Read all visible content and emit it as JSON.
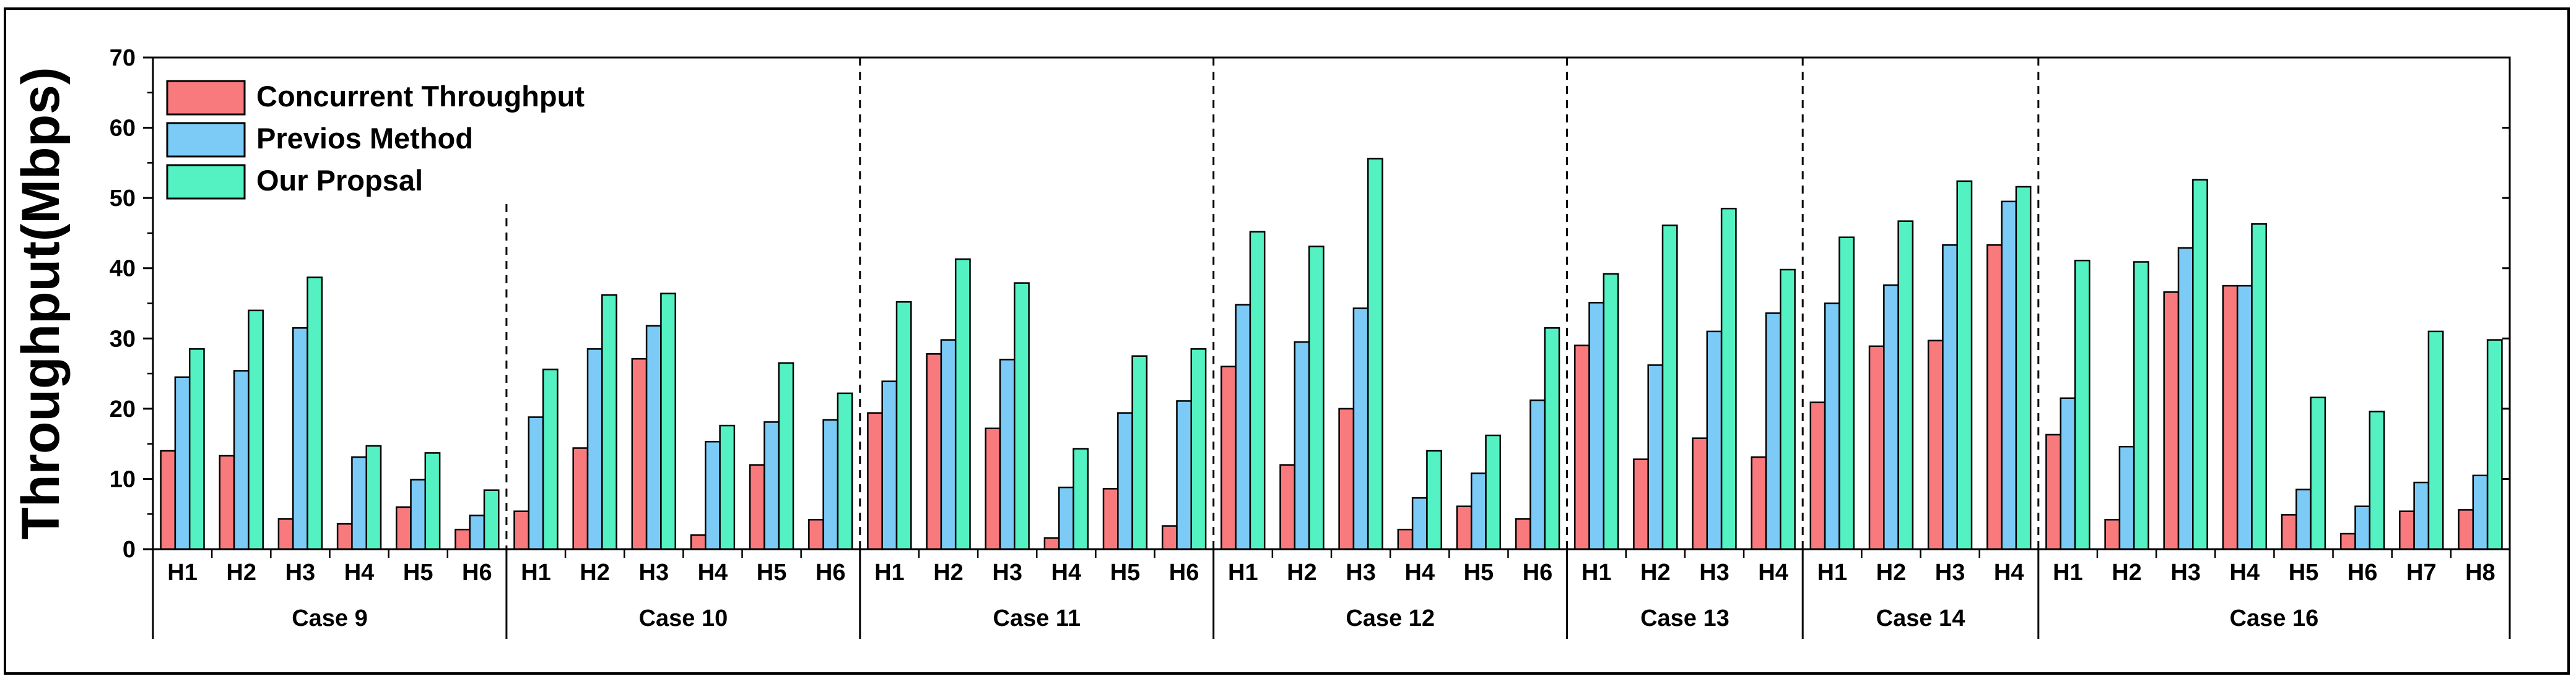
{
  "chart_data": {
    "type": "bar",
    "ylabel": "Throughput(Mbps)",
    "ylim": [
      0,
      70
    ],
    "yticks": [
      0,
      10,
      20,
      30,
      40,
      50,
      60,
      70
    ],
    "legend_position": "top-left",
    "series": [
      {
        "name": "Concurrent Throughput",
        "color": "#F87A7D"
      },
      {
        "name": "Previos Method",
        "color": "#7CCBF7"
      },
      {
        "name": "Our Propsal",
        "color": "#54F2C3"
      }
    ],
    "groups": [
      {
        "label": "Case 9",
        "hosts": [
          {
            "label": "H1",
            "values": [
              14,
              24.5,
              28.5
            ]
          },
          {
            "label": "H2",
            "values": [
              13.3,
              25.4,
              34
            ]
          },
          {
            "label": "H3",
            "values": [
              4.3,
              31.5,
              38.7
            ]
          },
          {
            "label": "H4",
            "values": [
              3.6,
              13.1,
              14.7
            ]
          },
          {
            "label": "H5",
            "values": [
              6,
              9.9,
              13.7
            ]
          },
          {
            "label": "H6",
            "values": [
              2.8,
              4.8,
              8.4
            ]
          }
        ]
      },
      {
        "label": "Case 10",
        "hosts": [
          {
            "label": "H1",
            "values": [
              5.4,
              18.8,
              25.6
            ]
          },
          {
            "label": "H2",
            "values": [
              14.4,
              28.5,
              36.2
            ]
          },
          {
            "label": "H3",
            "values": [
              27.1,
              31.8,
              36.4
            ]
          },
          {
            "label": "H4",
            "values": [
              2,
              15.3,
              17.6
            ]
          },
          {
            "label": "H5",
            "values": [
              12,
              18.1,
              26.5
            ]
          },
          {
            "label": "H6",
            "values": [
              4.2,
              18.4,
              22.2
            ]
          }
        ]
      },
      {
        "label": "Case 11",
        "hosts": [
          {
            "label": "H1",
            "values": [
              19.4,
              23.9,
              35.2
            ]
          },
          {
            "label": "H2",
            "values": [
              27.8,
              29.8,
              41.3
            ]
          },
          {
            "label": "H3",
            "values": [
              17.2,
              27,
              37.9
            ]
          },
          {
            "label": "H4",
            "values": [
              1.6,
              8.8,
              14.3
            ]
          },
          {
            "label": "H5",
            "values": [
              8.6,
              19.4,
              27.5
            ]
          },
          {
            "label": "H6",
            "values": [
              3.3,
              21.1,
              28.5
            ]
          }
        ]
      },
      {
        "label": "Case 12",
        "hosts": [
          {
            "label": "H1",
            "values": [
              26,
              34.8,
              45.2
            ]
          },
          {
            "label": "H2",
            "values": [
              12,
              29.5,
              43.1
            ]
          },
          {
            "label": "H3",
            "values": [
              20,
              34.3,
              55.6
            ]
          },
          {
            "label": "H4",
            "values": [
              2.8,
              7.3,
              14
            ]
          },
          {
            "label": "H5",
            "values": [
              6.1,
              10.8,
              16.2
            ]
          },
          {
            "label": "H6",
            "values": [
              4.3,
              21.2,
              31.5
            ]
          }
        ]
      },
      {
        "label": "Case 13",
        "hosts": [
          {
            "label": "H1",
            "values": [
              29,
              35.1,
              39.2
            ]
          },
          {
            "label": "H2",
            "values": [
              12.8,
              26.2,
              46.1
            ]
          },
          {
            "label": "H3",
            "values": [
              15.8,
              31,
              48.5
            ]
          },
          {
            "label": "H4",
            "values": [
              13.1,
              33.6,
              39.8
            ]
          }
        ]
      },
      {
        "label": "Case 14",
        "hosts": [
          {
            "label": "H1",
            "values": [
              20.9,
              35,
              44.4
            ]
          },
          {
            "label": "H2",
            "values": [
              28.9,
              37.6,
              46.7
            ]
          },
          {
            "label": "H3",
            "values": [
              29.7,
              43.3,
              52.4
            ]
          },
          {
            "label": "H4",
            "values": [
              43.3,
              49.5,
              51.6
            ]
          }
        ]
      },
      {
        "label": "Case 16",
        "hosts": [
          {
            "label": "H1",
            "values": [
              16.3,
              21.5,
              41.1
            ]
          },
          {
            "label": "H2",
            "values": [
              4.2,
              14.6,
              40.9
            ]
          },
          {
            "label": "H3",
            "values": [
              36.6,
              42.9,
              52.6
            ]
          },
          {
            "label": "H4",
            "values": [
              37.5,
              37.5,
              46.3
            ]
          },
          {
            "label": "H5",
            "values": [
              4.9,
              8.5,
              21.6
            ]
          },
          {
            "label": "H6",
            "values": [
              2.2,
              6.1,
              19.6
            ]
          },
          {
            "label": "H7",
            "values": [
              5.4,
              9.5,
              31
            ]
          },
          {
            "label": "H8",
            "values": [
              5.6,
              10.5,
              29.8
            ]
          }
        ]
      }
    ]
  }
}
